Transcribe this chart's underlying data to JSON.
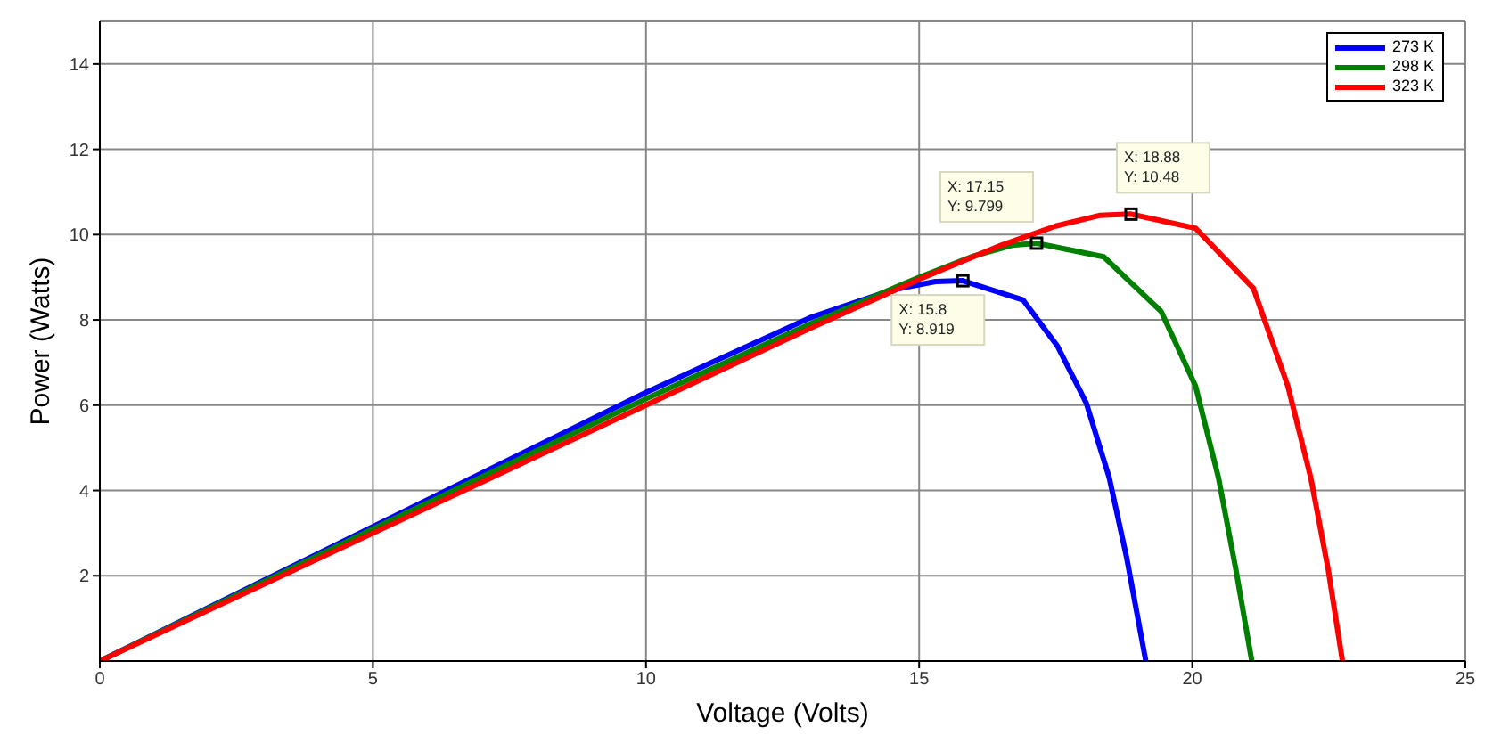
{
  "chart_data": {
    "type": "line",
    "xlabel": "Voltage (Volts)",
    "ylabel": "Power (Watts)",
    "xlim": [
      0,
      25
    ],
    "xticks": [
      0,
      5,
      10,
      15,
      20,
      25
    ],
    "ylim": [
      0,
      15
    ],
    "yticks": [
      2,
      4,
      6,
      8,
      10,
      12,
      14
    ],
    "grid": true,
    "legend": "top right",
    "marker": "none",
    "line_style": "solid",
    "series": [
      {
        "name": "273 K",
        "color": "#0000ff",
        "x": [
          0,
          5,
          10,
          13,
          14.5,
          15.3,
          15.8,
          16.9,
          17.53,
          18.06,
          18.48,
          18.8,
          19.15
        ],
        "values": [
          0,
          3.15,
          6.3,
          8.05,
          8.7,
          8.9,
          8.919,
          8.47,
          7.39,
          6.05,
          4.3,
          2.42,
          0
        ]
      },
      {
        "name": "298 K",
        "color": "#008000",
        "x": [
          0,
          5,
          10,
          13,
          15,
          16,
          16.7,
          17.15,
          18.38,
          19.43,
          20.06,
          20.48,
          20.8,
          21.09
        ],
        "values": [
          0,
          3.1,
          6.15,
          7.9,
          9.0,
          9.5,
          9.75,
          9.799,
          9.48,
          8.2,
          6.45,
          4.3,
          2.14,
          0
        ]
      },
      {
        "name": "323 K",
        "color": "#ff0000",
        "x": [
          0,
          5,
          10,
          13,
          15,
          16.5,
          17.5,
          18.3,
          18.88,
          20.06,
          21.12,
          21.75,
          22.17,
          22.49,
          22.75
        ],
        "values": [
          0,
          3.0,
          6.0,
          7.8,
          8.95,
          9.75,
          10.2,
          10.45,
          10.48,
          10.15,
          8.74,
          6.45,
          4.3,
          2.14,
          0
        ]
      }
    ],
    "annotations": [
      {
        "text": "X: 15.8\nY: 8.919",
        "x": 15.8,
        "y": 8.919
      },
      {
        "text": "X: 17.15\nY: 9.799",
        "x": 17.15,
        "y": 9.799
      },
      {
        "text": "X: 18.88\nY: 10.48",
        "x": 18.88,
        "y": 10.48
      }
    ]
  }
}
